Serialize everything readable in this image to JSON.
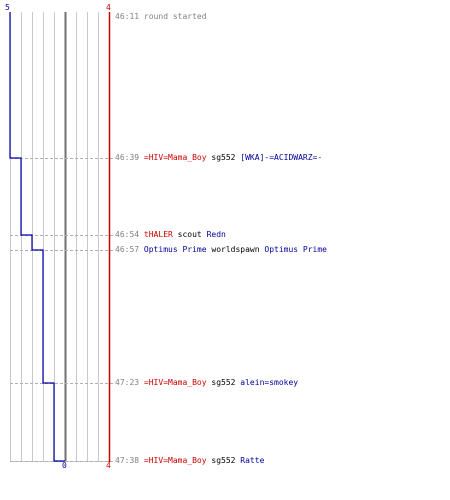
{
  "scores": {
    "blue_top": "5",
    "red_top": "4",
    "blue_bottom": "0",
    "red_bottom": "4"
  },
  "colors": {
    "blue": "#0000aa",
    "red": "#cc0000",
    "grid": "#c0c0c0",
    "center": "#707070",
    "time": "#808080"
  },
  "events": [
    {
      "time": "46:11",
      "text": "round started",
      "kind": "message"
    },
    {
      "time": "46:39",
      "killer": "=HIV=Mama_Boy",
      "killer_team": "red",
      "weapon": "sg552",
      "victim": "[WKA]-=ACIDWARZ=-",
      "victim_team": "blue"
    },
    {
      "time": "46:54",
      "killer": "tHALER",
      "killer_team": "red",
      "weapon": "scout",
      "victim": "Redn",
      "victim_team": "blue"
    },
    {
      "time": "46:57",
      "killer": "Optimus Prime",
      "killer_team": "blue",
      "weapon": "worldspawn",
      "victim": "Optimus Prime",
      "victim_team": "blue"
    },
    {
      "time": "47:23",
      "killer": "=HIV=Mama_Boy",
      "killer_team": "red",
      "weapon": "sg552",
      "victim": "alein=smokey",
      "victim_team": "blue"
    },
    {
      "time": "47:38",
      "killer": "=HIV=Mama_Boy",
      "killer_team": "red",
      "weapon": "sg552",
      "victim": "Ratte",
      "victim_team": "blue"
    }
  ]
}
